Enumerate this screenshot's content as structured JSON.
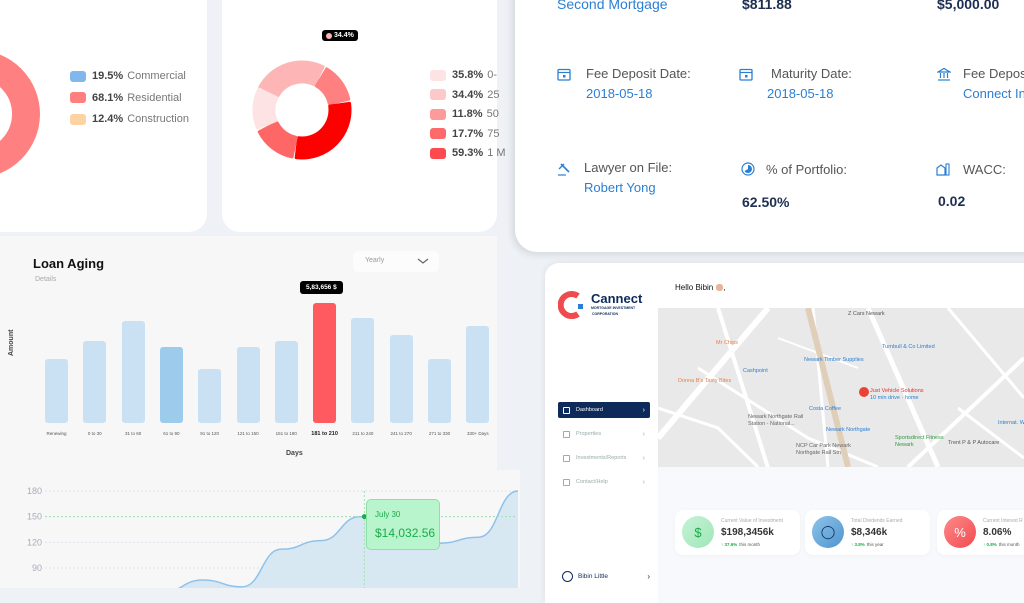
{
  "property_type_card": {
    "legend": [
      {
        "pct": "19.5%",
        "label": "Commercial",
        "color": "#7fb8ef"
      },
      {
        "pct": "68.1%",
        "label": "Residential",
        "color": "#ff7f7f"
      },
      {
        "pct": "12.4%",
        "label": "Construction",
        "color": "#fdd3a4"
      }
    ]
  },
  "loan_size_card": {
    "tooltip": "34.4%",
    "legend": [
      {
        "pct": "35.8%",
        "label": "0-",
        "color": "#fde3e4"
      },
      {
        "pct": "34.4%",
        "label": "25",
        "color": "#fdc8c9"
      },
      {
        "pct": "11.8%",
        "label": "50",
        "color": "#fd9a9a"
      },
      {
        "pct": "17.7%",
        "label": "75",
        "color": "#fe6a6a"
      },
      {
        "pct": "59.3%",
        "label": "1 M",
        "color": "#fd4a4f"
      }
    ]
  },
  "mortgage_details": {
    "top_row": [
      "Second Mortgage",
      "$811.88",
      "$5,000.00"
    ],
    "fee_deposit_date": {
      "label": "Fee Deposit Date:",
      "value": "2018-05-18"
    },
    "maturity_date": {
      "label": "Maturity Date:",
      "value": "2018-05-18"
    },
    "fee_deposit_to": {
      "label": "Fee Depos",
      "value": "Connect In"
    },
    "lawyer": {
      "label": "Lawyer on File:",
      "value": "Robert Yong"
    },
    "portfolio": {
      "label": "% of Portfolio:",
      "value": "62.50%"
    },
    "wacc": {
      "label": "WACC:",
      "value": "0.02"
    }
  },
  "loan_aging": {
    "title": "Loan Aging",
    "subtitle": "Details",
    "period_select": "Yearly",
    "tooltip": "5,83,656 $"
  },
  "chart_data": [
    {
      "type": "bar",
      "title": "Loan Aging",
      "xlabel": "Days",
      "ylabel": "Amount",
      "categories": [
        "Renewing",
        "0 to 30",
        "31 to 60",
        "61 to 90",
        "91 to 120",
        "121 to 150",
        "151 to 180",
        "181 to 210",
        "211 to 240",
        "241 to 270",
        "271 to 330",
        "330+ Days"
      ],
      "values": [
        311000,
        399000,
        496000,
        370000,
        263000,
        370000,
        399000,
        583656,
        511000,
        428000,
        311000,
        472000
      ],
      "highlighted": "181 to 210",
      "colors": {
        "bar": "#c9e1f2",
        "hover": "#9ccbec",
        "highlight": "#ff5a5f"
      }
    },
    {
      "type": "area",
      "yticks": [
        180,
        150,
        120,
        90
      ],
      "values": [
        30,
        35,
        45,
        62,
        76,
        68,
        112,
        122,
        150,
        124,
        119,
        126,
        180
      ],
      "highlight": {
        "label": "July 30",
        "value": "$14,032.56",
        "index": 8
      },
      "colors": {
        "line": "#8fc2ea",
        "fill": "#d8e8f3",
        "tooltip": "#b8f5cc",
        "tooltip_text": "#1aab4b"
      }
    }
  ],
  "app": {
    "logo": {
      "name": "Cannect",
      "sub1": "MORTGAGE INVESTMENT",
      "sub2": "CORPORATION"
    },
    "greeting": "Hello Bibin",
    "greeting_suffix": ",",
    "nav": [
      "Dashboard",
      "Properties",
      "Investments/Reports",
      "Contact/Help"
    ],
    "user": "Bibin Little",
    "map_labels": [
      "Z Cars Newark",
      "Mr Chips",
      "Turnbull & Co Limited",
      "Newark Timber Supplies",
      "Cashpoint",
      "Donna B's Tasty Bites",
      "Just Vehicle Solutions",
      "10 min drive · home",
      "Costa Coffee",
      "Newark Northgate Rail Station - National...",
      "Newark Northgate",
      "Sportsdirect Fitness Newark",
      "NCP Car Park Newark Northgate Rail Stn",
      "Trent P & P Autocare",
      "Internat. Woodworki"
    ],
    "stats": [
      {
        "title": "Current Value of Investment",
        "value": "$198,3456k",
        "delta": "37.6%",
        "period": "this month",
        "icon": "dollar-refresh-icon"
      },
      {
        "title": "Total Dividends Earned",
        "value": "$8,346k",
        "delta": "3.8%",
        "period": "this year",
        "icon": "coins-icon"
      },
      {
        "title": "Current Interest R",
        "value": "8.06%",
        "delta": "0.8%",
        "period": "this month",
        "icon": "percent-icon"
      }
    ]
  }
}
